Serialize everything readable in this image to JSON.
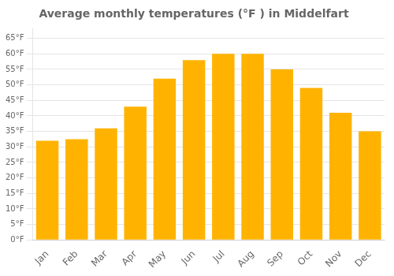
{
  "chart_data": {
    "type": "bar",
    "title": "Average monthly temperatures (°F ) in Middelfart",
    "categories": [
      "Jan",
      "Feb",
      "Mar",
      "Apr",
      "May",
      "Jun",
      "Jul",
      "Aug",
      "Sep",
      "Oct",
      "Nov",
      "Dec"
    ],
    "values": [
      32,
      32.5,
      36,
      43,
      52,
      58,
      60,
      60,
      55,
      49,
      41,
      35
    ],
    "color": "#FFB300",
    "ylim": [
      0,
      68
    ],
    "yticks": [
      {
        "value": 0,
        "label": "0°F"
      },
      {
        "value": 5,
        "label": "5°F"
      },
      {
        "value": 10,
        "label": "10°F"
      },
      {
        "value": 15,
        "label": "15°F"
      },
      {
        "value": 20,
        "label": "20°F"
      },
      {
        "value": 25,
        "label": "25°F"
      },
      {
        "value": 30,
        "label": "30°F"
      },
      {
        "value": 35,
        "label": "35°F"
      },
      {
        "value": 40,
        "label": "40°F"
      },
      {
        "value": 45,
        "label": "45°F"
      },
      {
        "value": 50,
        "label": "50°F"
      },
      {
        "value": 55,
        "label": "55°F"
      },
      {
        "value": 60,
        "label": "60°F"
      },
      {
        "value": 65,
        "label": "65°F"
      }
    ],
    "grid": true
  }
}
